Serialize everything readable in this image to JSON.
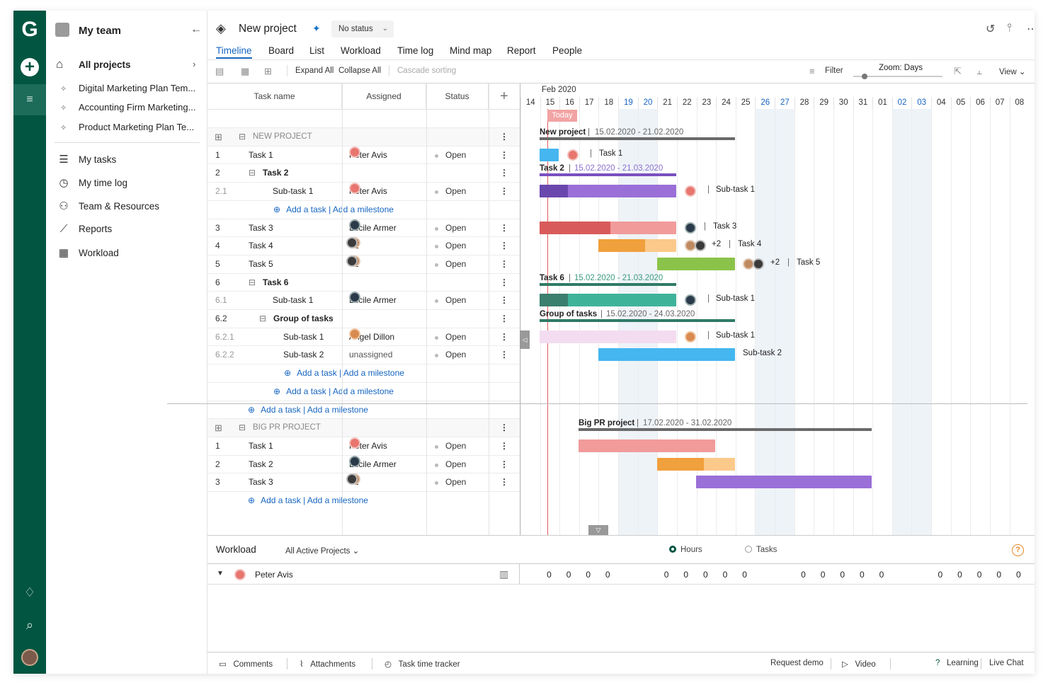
{
  "rail": {
    "logo": "G",
    "plus": "+",
    "menu": "≡"
  },
  "sidebar": {
    "team": "My team",
    "all_projects": "All projects",
    "favorites": [
      "Digital Marketing Plan Tem...",
      "Accounting Firm Marketing...",
      "Product Marketing Plan Te..."
    ],
    "nav": [
      {
        "label": "My tasks",
        "icon": "tasks-icon"
      },
      {
        "label": "My time log",
        "icon": "clock-icon"
      },
      {
        "label": "Team & Resources",
        "icon": "team-icon"
      },
      {
        "label": "Reports",
        "icon": "reports-icon"
      },
      {
        "label": "Workload",
        "icon": "workload-icon"
      }
    ]
  },
  "header": {
    "title": "New project",
    "status": "No status"
  },
  "tabs": [
    "Timeline",
    "Board",
    "List",
    "Workload",
    "Time log",
    "Mind map",
    "Report",
    "People"
  ],
  "toolbar": {
    "expand": "Expand All",
    "collapse": "Collapse All",
    "cascade": "Cascade sorting",
    "filter": "Filter",
    "zoom": "Zoom: Days",
    "view": "View"
  },
  "columns": {
    "task": "Task name",
    "assigned": "Assigned",
    "status": "Status"
  },
  "rows": [
    {
      "num": "",
      "name": "NEW PROJECT",
      "type": "project"
    },
    {
      "num": "1",
      "name": "Task 1",
      "assigned": "Peter Avis",
      "status": "Open"
    },
    {
      "num": "2",
      "name": "Task 2",
      "type": "group"
    },
    {
      "num": "2.1",
      "name": "Sub-task 1",
      "assigned": "Peter Avis",
      "status": "Open",
      "sub": true
    },
    {
      "type": "add",
      "text": "Add a task | Add a milestone"
    },
    {
      "num": "3",
      "name": "Task 3",
      "assigned": "Lucile Armer",
      "status": "Open"
    },
    {
      "num": "4",
      "name": "Task 4",
      "assigned": "+2",
      "status": "Open"
    },
    {
      "num": "5",
      "name": "Task 5",
      "assigned": "+2",
      "status": "Open"
    },
    {
      "num": "6",
      "name": "Task 6",
      "type": "group"
    },
    {
      "num": "6.1",
      "name": "Sub-task 1",
      "assigned": "Lucile Armer",
      "status": "Open",
      "sub": true
    },
    {
      "num": "6.2",
      "name": "Group of tasks",
      "type": "group2"
    },
    {
      "num": "6.2.1",
      "name": "Sub-task 1",
      "assigned": "Angel Dillon",
      "status": "Open",
      "sub2": true
    },
    {
      "num": "6.2.2",
      "name": "Sub-task 2",
      "assigned": "unassigned",
      "status": "Open",
      "sub2": true
    },
    {
      "type": "add",
      "text": "Add a task | Add a milestone"
    },
    {
      "type": "add",
      "text": "Add a task | Add a milestone"
    },
    {
      "type": "add",
      "text": "Add a task | Add a milestone"
    },
    {
      "num": "",
      "name": "BIG PR PROJECT",
      "type": "project"
    },
    {
      "num": "1",
      "name": "Task 1",
      "assigned": "Peter Avis",
      "status": "Open"
    },
    {
      "num": "2",
      "name": "Task 2",
      "assigned": "Lucile Armer",
      "status": "Open"
    },
    {
      "num": "3",
      "name": "Task 3",
      "assigned": "+2",
      "status": "Open"
    },
    {
      "type": "add",
      "text": "Add a task    |    Add a milestone"
    }
  ],
  "timeline": {
    "month": "Feb 2020",
    "today": "Today",
    "days": [
      "14",
      "15",
      "16",
      "17",
      "18",
      "19",
      "20",
      "21",
      "22",
      "23",
      "24",
      "25",
      "26",
      "27",
      "28",
      "29",
      "30",
      "31",
      "01",
      "02",
      "03",
      "04",
      "05",
      "06",
      "07",
      "08"
    ]
  },
  "gantt_labels": {
    "new_project": "New project",
    "new_project_dates": "15.02.2020 - 21.02.2020",
    "task1": "Task 1",
    "task2": "Task 2",
    "task2_dates": "15.02.2020 - 21.03.2020",
    "subtask1": "Sub-task 1",
    "task3": "Task 3",
    "task4": "Task 4",
    "task5": "Task 5",
    "plus2": "+2",
    "task6": "Task 6",
    "task6_dates": "15.02.2020 - 21.03.2020",
    "group": "Group of tasks",
    "group_dates": "15.02.2020 - 24.03.2020",
    "subtask2": "Sub-task 2",
    "big_pr": "Big PR project",
    "big_pr_dates": "17.02.2020 - 31.02.2020"
  },
  "workload": {
    "title": "Workload",
    "filter": "All Active Projects",
    "hours": "Hours",
    "tasks": "Tasks",
    "person": "Peter Avis",
    "values": [
      "0",
      "0",
      "0",
      "0",
      "",
      "",
      "0",
      "0",
      "0",
      "0",
      "0",
      "",
      "",
      "0",
      "0",
      "0",
      "0",
      "0",
      "",
      "",
      "0",
      "0",
      "0",
      "0",
      "0"
    ]
  },
  "footer": {
    "comments": "Comments",
    "attachments": "Attachments",
    "tracker": "Task time tracker",
    "demo": "Request demo",
    "video": "Video",
    "learning": "Learning",
    "chat": "Live Chat"
  }
}
